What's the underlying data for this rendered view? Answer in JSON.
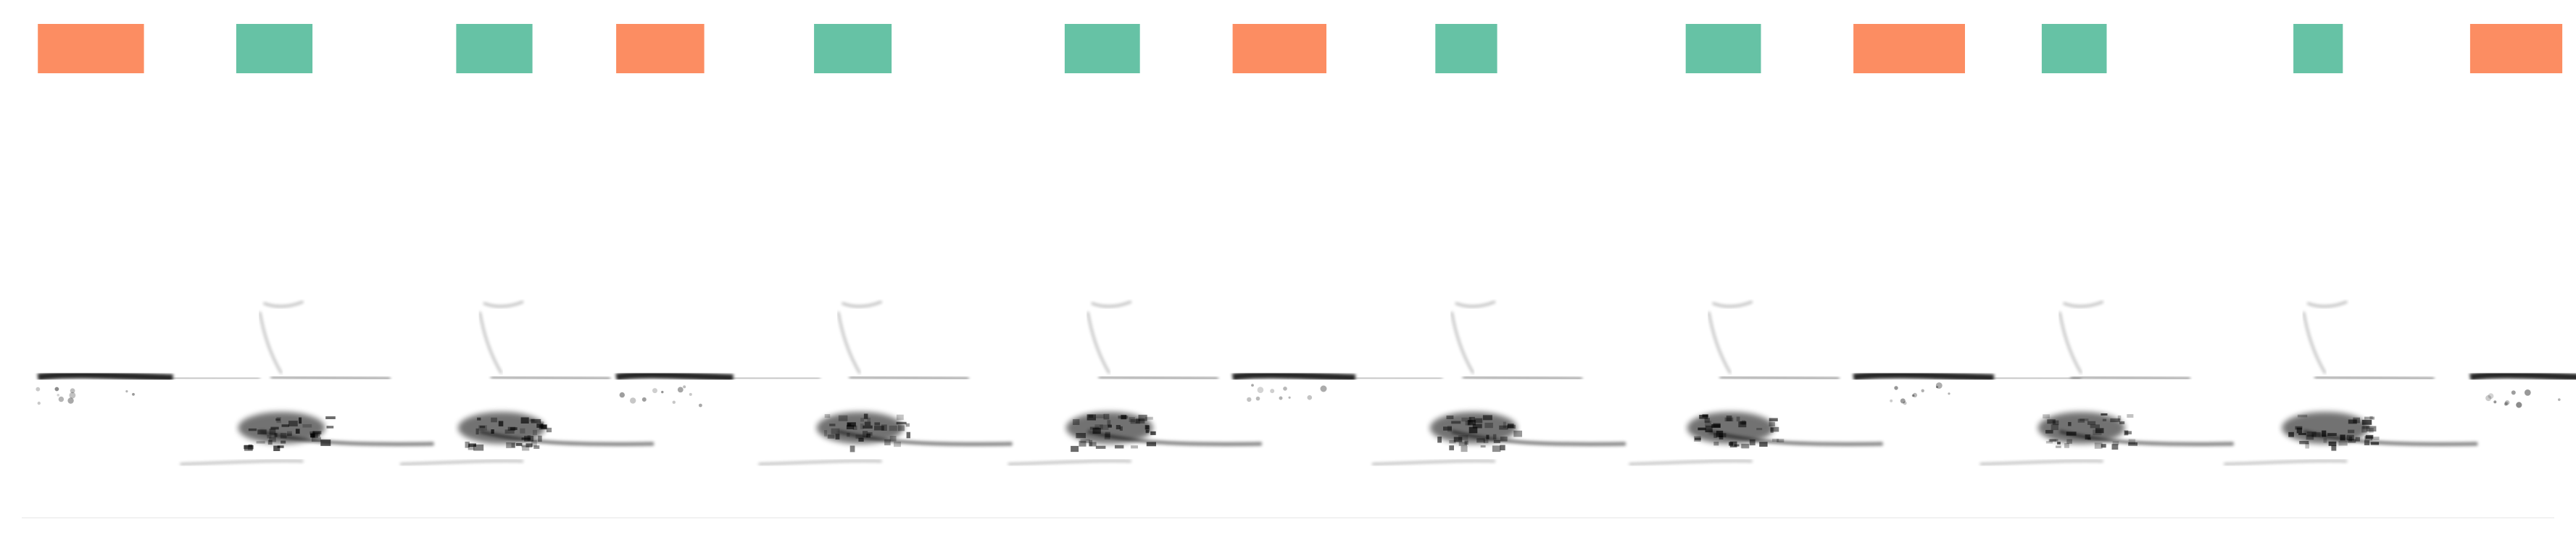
{
  "colors": {
    "background": "#ffffff",
    "label_a": "#fc8d62",
    "label_b": "#66c2a5",
    "spectrogram_ink": "#000000"
  },
  "segments": [
    {
      "class": "a",
      "start": 0.0147,
      "end": 0.0559
    },
    {
      "class": "b",
      "start": 0.0917,
      "end": 0.1213
    },
    {
      "class": "b",
      "start": 0.1771,
      "end": 0.2067
    },
    {
      "class": "a",
      "start": 0.2392,
      "end": 0.2734
    },
    {
      "class": "b",
      "start": 0.316,
      "end": 0.3461
    },
    {
      "class": "b",
      "start": 0.4133,
      "end": 0.4425
    },
    {
      "class": "a",
      "start": 0.4785,
      "end": 0.5149
    },
    {
      "class": "b",
      "start": 0.5572,
      "end": 0.5812
    },
    {
      "class": "b",
      "start": 0.6544,
      "end": 0.6836
    },
    {
      "class": "a",
      "start": 0.7195,
      "end": 0.7628
    },
    {
      "class": "b",
      "start": 0.7926,
      "end": 0.8178
    },
    {
      "class": "b",
      "start": 0.8903,
      "end": 0.9095
    },
    {
      "class": "a",
      "start": 0.9589,
      "end": 0.9947
    }
  ]
}
